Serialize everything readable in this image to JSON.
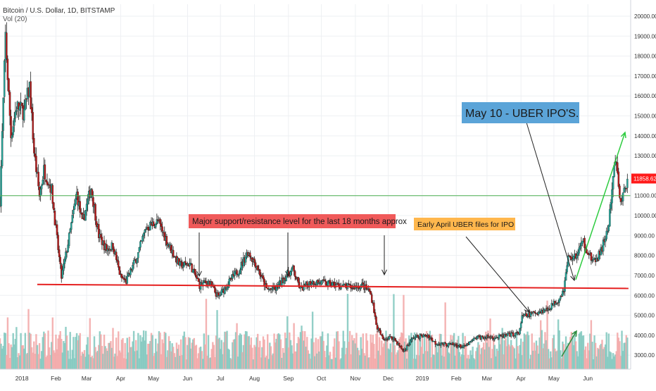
{
  "legend": {
    "symbol": "Bitcoin / U.S. Dollar, 1D, BITSTAMP",
    "volume": "Vol (20)"
  },
  "chart_data": {
    "type": "candlestick",
    "y_ticks": [
      "20000.00",
      "19000.00",
      "18000.00",
      "17000.00",
      "16000.00",
      "15000.00",
      "14000.00",
      "13000.00",
      "12000.00",
      "11000.00",
      "10000.00",
      "9000.00",
      "8000.00",
      "7000.00",
      "6000.00",
      "5000.00",
      "4000.00",
      "3000.00"
    ],
    "ylim": [
      2300,
      20600
    ],
    "x_ticks": [
      {
        "label": "2018",
        "date": "2018-01-01"
      },
      {
        "label": "Feb",
        "date": "2018-02-01"
      },
      {
        "label": "Mar",
        "date": "2018-03-01"
      },
      {
        "label": "Apr",
        "date": "2018-04-01"
      },
      {
        "label": "May",
        "date": "2018-05-01"
      },
      {
        "label": "Jun",
        "date": "2018-06-01"
      },
      {
        "label": "Jul",
        "date": "2018-07-01"
      },
      {
        "label": "Aug",
        "date": "2018-08-01"
      },
      {
        "label": "Sep",
        "date": "2018-09-01"
      },
      {
        "label": "Oct",
        "date": "2018-10-01"
      },
      {
        "label": "Nov",
        "date": "2018-11-01"
      },
      {
        "label": "Dec",
        "date": "2018-12-01"
      },
      {
        "label": "2019",
        "date": "2019-01-01"
      },
      {
        "label": "Feb",
        "date": "2019-02-01"
      },
      {
        "label": "Mar",
        "date": "2019-03-01"
      },
      {
        "label": "Apr",
        "date": "2019-04-01"
      },
      {
        "label": "May",
        "date": "2019-05-01"
      },
      {
        "label": "Jun",
        "date": "2019-06-01"
      }
    ],
    "x_range": [
      "2017-12-12",
      "2019-07-10"
    ],
    "last_price": "11858.62",
    "price_path": [
      [
        "2017-12-12",
        10800
      ],
      [
        "2017-12-17",
        19000
      ],
      [
        "2017-12-22",
        14000
      ],
      [
        "2017-12-27",
        15500
      ],
      [
        "2018-01-03",
        15200
      ],
      [
        "2018-01-08",
        16500
      ],
      [
        "2018-01-12",
        13200
      ],
      [
        "2018-01-17",
        11000
      ],
      [
        "2018-01-21",
        12300
      ],
      [
        "2018-01-28",
        11300
      ],
      [
        "2018-02-02",
        8800
      ],
      [
        "2018-02-06",
        6900
      ],
      [
        "2018-02-11",
        8300
      ],
      [
        "2018-02-20",
        11100
      ],
      [
        "2018-02-25",
        9600
      ],
      [
        "2018-03-05",
        11400
      ],
      [
        "2018-03-12",
        9000
      ],
      [
        "2018-03-19",
        8300
      ],
      [
        "2018-03-25",
        8500
      ],
      [
        "2018-04-01",
        6900
      ],
      [
        "2018-04-06",
        6700
      ],
      [
        "2018-04-17",
        8100
      ],
      [
        "2018-04-24",
        9400
      ],
      [
        "2018-05-05",
        9700
      ],
      [
        "2018-05-15",
        8500
      ],
      [
        "2018-05-25",
        7500
      ],
      [
        "2018-06-03",
        7600
      ],
      [
        "2018-06-12",
        6500
      ],
      [
        "2018-06-20",
        6700
      ],
      [
        "2018-06-29",
        5900
      ],
      [
        "2018-07-08",
        6600
      ],
      [
        "2018-07-18",
        7300
      ],
      [
        "2018-07-26",
        8200
      ],
      [
        "2018-08-03",
        7500
      ],
      [
        "2018-08-12",
        6300
      ],
      [
        "2018-08-20",
        6300
      ],
      [
        "2018-08-30",
        7000
      ],
      [
        "2018-09-05",
        7300
      ],
      [
        "2018-09-12",
        6300
      ],
      [
        "2018-09-22",
        6700
      ],
      [
        "2018-10-05",
        6600
      ],
      [
        "2018-10-16",
        6500
      ],
      [
        "2018-10-28",
        6400
      ],
      [
        "2018-11-07",
        6500
      ],
      [
        "2018-11-14",
        6200
      ],
      [
        "2018-11-17",
        5600
      ],
      [
        "2018-11-20",
        4500
      ],
      [
        "2018-11-26",
        3800
      ],
      [
        "2018-12-05",
        3900
      ],
      [
        "2018-12-15",
        3200
      ],
      [
        "2018-12-24",
        3900
      ],
      [
        "2019-01-06",
        4000
      ],
      [
        "2019-01-13",
        3600
      ],
      [
        "2019-02-01",
        3500
      ],
      [
        "2019-02-08",
        3400
      ],
      [
        "2019-02-20",
        3900
      ],
      [
        "2019-03-10",
        3900
      ],
      [
        "2019-03-30",
        4100
      ],
      [
        "2019-04-02",
        4900
      ],
      [
        "2019-04-12",
        5100
      ],
      [
        "2019-04-25",
        5300
      ],
      [
        "2019-05-05",
        5800
      ],
      [
        "2019-05-10",
        6300
      ],
      [
        "2019-05-14",
        7900
      ],
      [
        "2019-05-20",
        7900
      ],
      [
        "2019-05-28",
        8700
      ],
      [
        "2019-06-06",
        7600
      ],
      [
        "2019-06-13",
        8200
      ],
      [
        "2019-06-20",
        9500
      ],
      [
        "2019-06-26",
        12900
      ],
      [
        "2019-07-01",
        10600
      ],
      [
        "2019-07-07",
        11858
      ]
    ],
    "price_line": {
      "value": 11000,
      "color": "#4caf50"
    },
    "support_line": {
      "start": [
        "2018-01-15",
        6550
      ],
      "end": [
        "2019-07-08",
        6350
      ],
      "color": "#e52020"
    },
    "colors": {
      "up": "#26a69a",
      "down": "#b71c1c",
      "candle_up_fill": "#26a69a",
      "vol_up": "#7fc7bd",
      "vol_down": "#f2a6a6",
      "arrow_green": "#2ecc40",
      "tag": "#ff1a1a"
    },
    "annotations": [
      {
        "id": "support",
        "text": "Major support/resistance level for the last 18 months approx",
        "bg": "#f05a5a",
        "color": "#1a1a1a"
      },
      {
        "id": "april",
        "text": "Early April UBER files for IPO",
        "bg": "#ffb74d",
        "color": "#1a1a1a"
      },
      {
        "id": "may",
        "text": "May 10 - UBER IPO'S.",
        "bg": "#5ba4d8",
        "color": "#1a1a1a"
      }
    ]
  }
}
